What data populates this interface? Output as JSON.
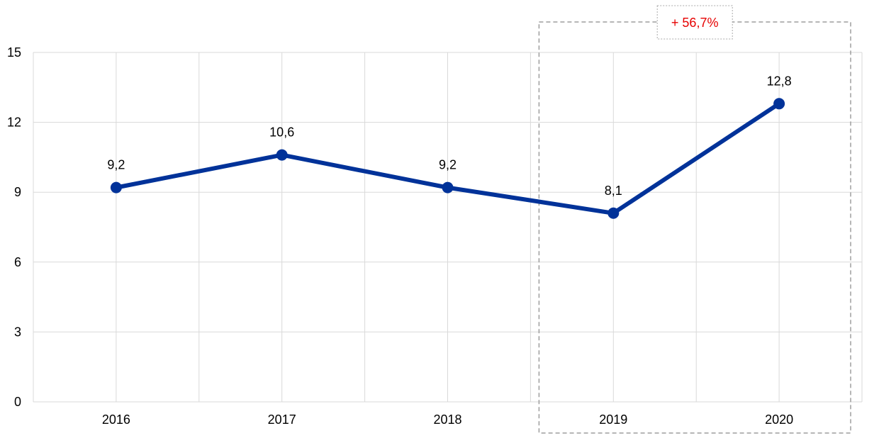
{
  "chart_data": {
    "type": "line",
    "title": "",
    "xlabel": "",
    "ylabel": "",
    "x": [
      "2016",
      "2017",
      "2018",
      "2019",
      "2020"
    ],
    "series": [
      {
        "values": [
          9.2,
          10.6,
          9.2,
          8.1,
          12.8
        ],
        "color": "#003299"
      }
    ],
    "data_labels": [
      "9,2",
      "10,6",
      "9,2",
      "8,1",
      "12,8"
    ],
    "ylim": [
      0,
      15
    ],
    "yticks": [
      "0",
      "3",
      "6",
      "9",
      "12",
      "15"
    ],
    "grid": true,
    "legend": "none",
    "annotation": {
      "text": "+ 56,7%",
      "color": "#e60000",
      "range": [
        "2019",
        "2020"
      ],
      "style": "dashed box"
    }
  }
}
